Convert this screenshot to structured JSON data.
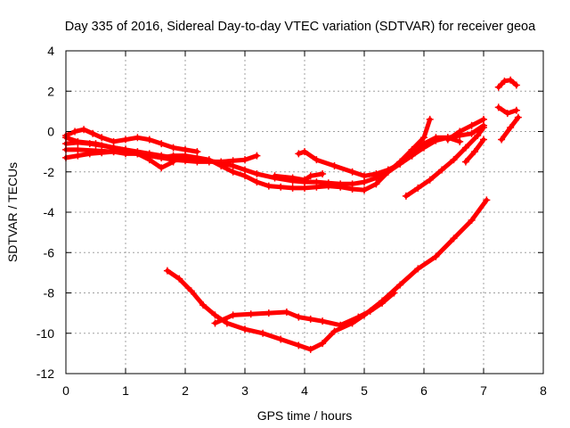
{
  "chart_data": {
    "type": "scatter",
    "title": "Day 335 of 2016, Sidereal Day-to-day VTEC variation (SDTVAR) for receiver geoa",
    "xlabel": "GPS time / hours",
    "ylabel": "SDTVAR / TECUs",
    "xlim": [
      0,
      8
    ],
    "ylim": [
      -12,
      4
    ],
    "xticks": [
      0,
      1,
      2,
      3,
      4,
      5,
      6,
      7,
      8
    ],
    "yticks": [
      -12,
      -10,
      -8,
      -6,
      -4,
      -2,
      0,
      2,
      4
    ],
    "grid": true,
    "marker": "plus",
    "color": "#ff0000",
    "series": [
      {
        "x": [
          0,
          0.2,
          0.5,
          0.8,
          1.0,
          1.2,
          1.4,
          1.6,
          1.8,
          2.0,
          2.2,
          2.4,
          2.6,
          2.8,
          3.0,
          3.2,
          3.4,
          3.6,
          3.8,
          4.0,
          4.2,
          4.4,
          4.6,
          4.8,
          5.0,
          5.2,
          5.4,
          5.6,
          5.8,
          6.0,
          6.1
        ],
        "y": [
          -0.9,
          -0.9,
          -0.95,
          -1.0,
          -1.1,
          -1.1,
          -1.2,
          -1.3,
          -1.2,
          -1.2,
          -1.3,
          -1.4,
          -1.7,
          -2.0,
          -2.2,
          -2.5,
          -2.7,
          -2.75,
          -2.8,
          -2.8,
          -2.75,
          -2.7,
          -2.75,
          -2.85,
          -2.9,
          -2.6,
          -2.0,
          -1.5,
          -0.9,
          -0.3,
          0.6
        ]
      },
      {
        "x": [
          0,
          0.2,
          0.5,
          0.8,
          1.0,
          1.2,
          1.4,
          1.6,
          1.8,
          2.0,
          2.2,
          2.4,
          2.6,
          2.8,
          3.0,
          3.2,
          3.5,
          3.8,
          4.0,
          4.2,
          4.4,
          4.6,
          4.8,
          5.0,
          5.2,
          5.4,
          5.6,
          5.8,
          6.0,
          6.2,
          6.4,
          6.6,
          6.8,
          7.0
        ],
        "y": [
          -0.3,
          -0.5,
          -0.6,
          -0.8,
          -0.9,
          -1.0,
          -1.1,
          -1.2,
          -1.3,
          -1.35,
          -1.4,
          -1.45,
          -1.55,
          -1.7,
          -1.9,
          -2.1,
          -2.3,
          -2.45,
          -2.5,
          -2.5,
          -2.55,
          -2.6,
          -2.6,
          -2.5,
          -2.3,
          -2.0,
          -1.6,
          -1.2,
          -0.8,
          -0.45,
          -0.3,
          -0.2,
          -0.1,
          0.3
        ]
      },
      {
        "x": [
          0,
          0.2,
          0.4,
          0.6,
          0.8,
          1.0,
          1.2,
          1.4,
          1.6,
          1.8,
          2.0,
          2.2,
          2.4,
          2.6,
          2.8,
          3.0,
          3.2
        ],
        "y": [
          -1.3,
          -1.2,
          -1.1,
          -1.05,
          -1.0,
          -1.05,
          -1.1,
          -1.2,
          -1.3,
          -1.4,
          -1.45,
          -1.5,
          -1.5,
          -1.5,
          -1.45,
          -1.4,
          -1.2
        ]
      },
      {
        "x": [
          0,
          0.15,
          0.3,
          0.45,
          0.6,
          0.8,
          1.0,
          1.2,
          1.4,
          1.6,
          1.8,
          2.0,
          2.2
        ],
        "y": [
          -0.2,
          0.0,
          0.1,
          -0.1,
          -0.3,
          -0.5,
          -0.4,
          -0.3,
          -0.4,
          -0.6,
          -0.8,
          -0.9,
          -1.0
        ]
      },
      {
        "x": [
          0,
          0.2,
          0.4,
          0.6,
          0.8,
          1.0,
          1.2,
          1.4,
          1.6,
          1.8
        ],
        "y": [
          -0.6,
          -0.55,
          -0.6,
          -0.7,
          -0.8,
          -0.9,
          -1.1,
          -1.4,
          -1.8,
          -1.5
        ]
      },
      {
        "x": [
          3.5,
          3.8,
          4.0,
          4.1,
          4.3
        ],
        "y": [
          -2.2,
          -2.3,
          -2.4,
          -2.2,
          -2.1
        ]
      },
      {
        "x": [
          3.9,
          4.0,
          4.2,
          4.5,
          4.8,
          5.0,
          5.2,
          5.4,
          5.6,
          5.8,
          6.0,
          6.2,
          6.4,
          6.6
        ],
        "y": [
          -1.1,
          -1.0,
          -1.4,
          -1.7,
          -2.0,
          -2.2,
          -2.1,
          -1.9,
          -1.6,
          -1.2,
          -0.6,
          -0.3,
          -0.3,
          -0.5
        ]
      },
      {
        "x": [
          5.7,
          5.9,
          6.1,
          6.3,
          6.5,
          6.7,
          6.9,
          7.0
        ],
        "y": [
          -3.2,
          -2.8,
          -2.4,
          -1.9,
          -1.4,
          -0.8,
          -0.2,
          0.2
        ]
      },
      {
        "x": [
          6.4,
          6.6,
          6.8,
          7.0
        ],
        "y": [
          -0.4,
          0.0,
          0.3,
          0.6
        ]
      },
      {
        "x": [
          6.7,
          6.85,
          7.0
        ],
        "y": [
          -1.5,
          -1.0,
          -0.4
        ]
      },
      {
        "x": [
          1.7,
          1.9,
          2.1,
          2.3,
          2.5,
          2.7,
          3.0,
          3.3,
          3.6,
          3.9,
          4.1,
          4.3,
          4.5,
          4.8,
          5.0,
          5.3,
          5.6,
          5.9,
          6.2,
          6.5,
          6.8,
          7.05
        ],
        "y": [
          -6.9,
          -7.3,
          -7.9,
          -8.6,
          -9.1,
          -9.5,
          -9.8,
          -10.0,
          -10.3,
          -10.6,
          -10.8,
          -10.5,
          -9.9,
          -9.5,
          -9.1,
          -8.4,
          -7.6,
          -6.8,
          -6.2,
          -5.3,
          -4.4,
          -3.4
        ]
      },
      {
        "x": [
          2.5,
          2.8,
          3.1,
          3.4,
          3.7,
          3.9,
          4.1,
          4.3,
          4.6,
          4.9,
          5.1,
          5.3,
          5.5
        ],
        "y": [
          -9.5,
          -9.1,
          -9.05,
          -9.0,
          -8.95,
          -9.2,
          -9.3,
          -9.4,
          -9.6,
          -9.2,
          -8.9,
          -8.5,
          -8.0
        ]
      },
      {
        "x": [
          7.25,
          7.35,
          7.45,
          7.55
        ],
        "y": [
          2.2,
          2.5,
          2.55,
          2.3
        ]
      },
      {
        "x": [
          7.25,
          7.4,
          7.55
        ],
        "y": [
          1.2,
          0.9,
          1.05
        ]
      },
      {
        "x": [
          7.3,
          7.45,
          7.58
        ],
        "y": [
          -0.4,
          0.2,
          0.7
        ]
      }
    ]
  }
}
